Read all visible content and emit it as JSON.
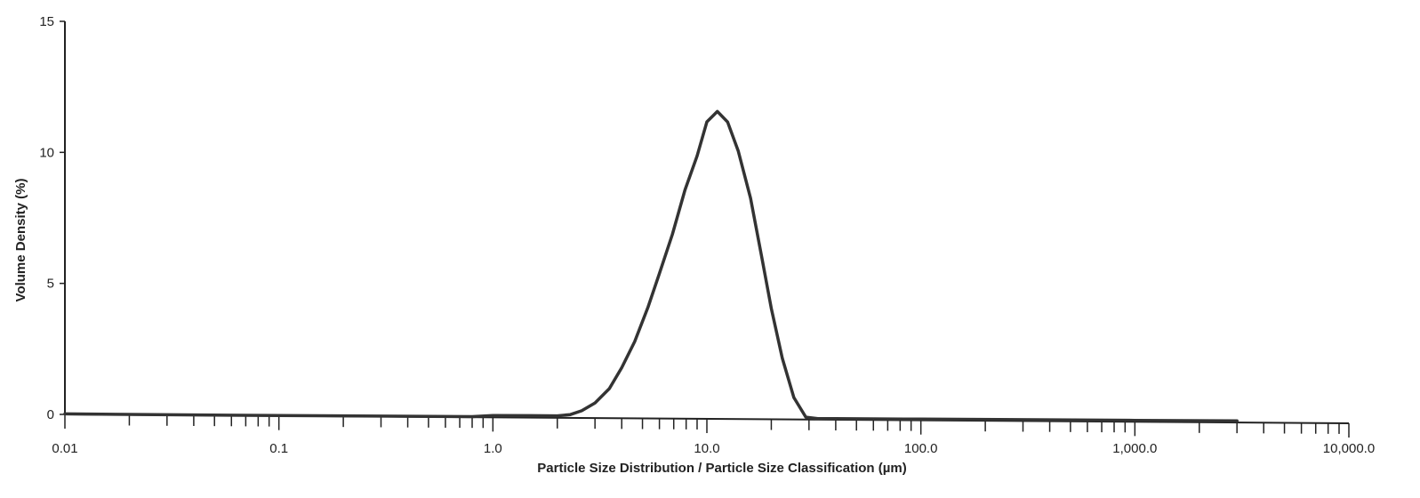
{
  "chart_data": {
    "type": "line",
    "xlabel": "Particle Size Distribution / Particle Size Classification (µm)",
    "ylabel": "Volume Density (%)",
    "x_scale": "log",
    "xlim": [
      0.01,
      10000
    ],
    "ylim": [
      0,
      15
    ],
    "grid": false,
    "legend": "none",
    "x_ticks": [
      {
        "value": 0.01,
        "label": "0.01"
      },
      {
        "value": 0.1,
        "label": "0.1"
      },
      {
        "value": 1,
        "label": "1.0"
      },
      {
        "value": 10,
        "label": "10.0"
      },
      {
        "value": 100,
        "label": "100.0"
      },
      {
        "value": 1000,
        "label": "1,000.0"
      },
      {
        "value": 10000,
        "label": "10,000.0"
      }
    ],
    "y_ticks": [
      {
        "value": 0,
        "label": "0"
      },
      {
        "value": 5,
        "label": "5"
      },
      {
        "value": 10,
        "label": "10"
      },
      {
        "value": 15,
        "label": "15"
      }
    ],
    "series": [
      {
        "color": "#333333",
        "x": [
          0.01,
          0.1,
          0.8,
          1.0,
          1.5,
          2.0,
          2.3,
          2.6,
          3.0,
          3.5,
          4.0,
          4.6,
          5.3,
          6.0,
          6.9,
          7.9,
          9.0,
          10.0,
          11.2,
          12.5,
          14.0,
          16.0,
          18.0,
          20.0,
          22.5,
          25.5,
          29.0,
          33.0,
          40.0,
          100.0,
          1000.0,
          3000.0
        ],
        "y": [
          0.02,
          0.0,
          0.0,
          0.05,
          0.05,
          0.05,
          0.1,
          0.25,
          0.55,
          1.1,
          1.9,
          2.9,
          4.2,
          5.5,
          7.0,
          8.7,
          10.0,
          11.3,
          11.7,
          11.3,
          10.2,
          8.4,
          6.2,
          4.2,
          2.3,
          0.8,
          0.05,
          0.0,
          0.0,
          0.0,
          0.0,
          0.0
        ]
      }
    ]
  }
}
